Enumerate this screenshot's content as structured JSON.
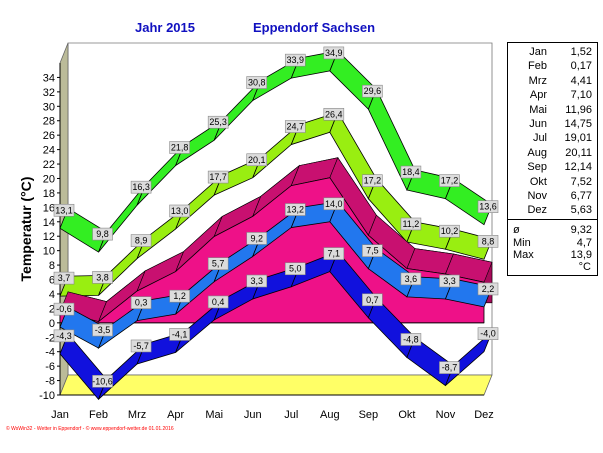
{
  "header": {
    "year": "Jahr  2015",
    "station": "Eppendorf Sachsen"
  },
  "footer": "© WsWin32 - Wetter in Eppendorf - © www.eppendorf-wetter.de  01.01.2016",
  "colors": {
    "max_ribbon": "#33ee22",
    "avgmax_ribbon": "#99ee11",
    "mean_area": "#ee1188",
    "avgmin_ribbon": "#2277ee",
    "min_ribbon": "#1111dd",
    "axis_wall": "#bbbb99",
    "floor": "#ffff66",
    "title": "#1010c0"
  },
  "chart_data": {
    "type": "area",
    "title": "",
    "ylabel": "Temperatur  (°C)",
    "categories": [
      "Jan",
      "Feb",
      "Mrz",
      "Apr",
      "Mai",
      "Jun",
      "Jul",
      "Aug",
      "Sep",
      "Okt",
      "Nov",
      "Dez"
    ],
    "ylim": [
      -10,
      36
    ],
    "yticks": [
      -10,
      -8,
      -6,
      -4,
      -2,
      0,
      2,
      4,
      6,
      8,
      10,
      12,
      14,
      16,
      18,
      20,
      22,
      24,
      26,
      28,
      30,
      32,
      34
    ],
    "series": [
      {
        "key": "max",
        "style": "ribbon",
        "values": [
          13.1,
          9.8,
          16.3,
          21.8,
          25.3,
          30.8,
          33.9,
          34.9,
          29.6,
          18.4,
          17.2,
          13.6
        ],
        "labels": [
          "13,1",
          "9,8",
          "16,3",
          "21,8",
          "25,3",
          "30,8",
          "33,9",
          "34,9",
          "29,6",
          "18,4",
          "17,2",
          "13,6"
        ]
      },
      {
        "key": "avg_max",
        "style": "ribbon",
        "values": [
          3.7,
          3.8,
          8.9,
          13.0,
          17.7,
          20.1,
          24.7,
          26.4,
          17.2,
          11.2,
          10.2,
          8.8
        ],
        "labels": [
          "3,7",
          "3,8",
          "8,9",
          "13,0",
          "17,7",
          "20,1",
          "24,7",
          "26,4",
          "17,2",
          "11,2",
          "10,2",
          "8,8"
        ]
      },
      {
        "key": "mean",
        "style": "area",
        "values": [
          1.52,
          0.17,
          4.41,
          7.1,
          11.96,
          14.75,
          19.01,
          20.11,
          12.14,
          7.52,
          6.77,
          5.63
        ]
      },
      {
        "key": "avg_min",
        "style": "ribbon",
        "values": [
          -0.6,
          -3.5,
          0.3,
          1.2,
          5.7,
          9.2,
          13.2,
          14.0,
          7.5,
          3.6,
          3.3,
          2.2
        ],
        "labels": [
          "-0,6",
          "-3,5",
          "0,3",
          "1,2",
          "5,7",
          "9,2",
          "13,2",
          "14,0",
          "7,5",
          "3,6",
          "3,3",
          "2,2"
        ]
      },
      {
        "key": "min",
        "style": "ribbon",
        "values": [
          -4.3,
          -10.6,
          -5.7,
          -4.1,
          0.4,
          3.3,
          5.0,
          7.1,
          0.7,
          -4.8,
          -8.7,
          -4.0
        ],
        "labels": [
          "-4,3",
          "-10,6",
          "-5,7",
          "-4,1",
          "0,4",
          "3,3",
          "5,0",
          "7,1",
          "0,7",
          "-4,8",
          "-8,7",
          "-4,0"
        ]
      }
    ],
    "monthly_means": [
      {
        "month": "Jan",
        "value": "1,52"
      },
      {
        "month": "Feb",
        "value": "0,17"
      },
      {
        "month": "Mrz",
        "value": "4,41"
      },
      {
        "month": "Apr",
        "value": "7,10"
      },
      {
        "month": "Mai",
        "value": "11,96"
      },
      {
        "month": "Jun",
        "value": "14,75"
      },
      {
        "month": "Jul",
        "value": "19,01"
      },
      {
        "month": "Aug",
        "value": "20,11"
      },
      {
        "month": "Sep",
        "value": "12,14"
      },
      {
        "month": "Okt",
        "value": "7,52"
      },
      {
        "month": "Nov",
        "value": "6,77"
      },
      {
        "month": "Dez",
        "value": "5,63"
      }
    ],
    "summary": [
      {
        "label": "ø",
        "value": "9,32"
      },
      {
        "label": "Min",
        "value": "4,7"
      },
      {
        "label": "Max",
        "value": "13,9"
      }
    ],
    "unit": "°C",
    "grid": false,
    "legend": "right"
  }
}
